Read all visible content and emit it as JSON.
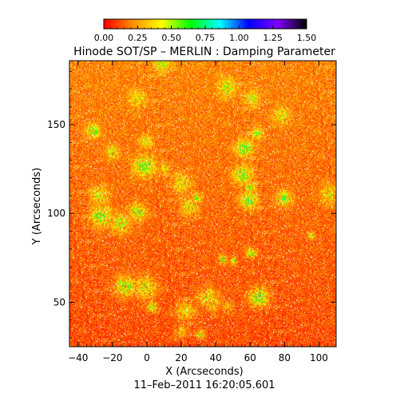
{
  "chart_data": {
    "type": "heatmap",
    "title": "Hinode SOT/SP – MERLIN : Damping Parameter",
    "xlabel": "X (Arcseconds)",
    "ylabel": "Y (Arcseconds)",
    "footer": "11–Feb–2011 16:20:05.601",
    "xlim": [
      -45,
      110
    ],
    "ylim": [
      25,
      186
    ],
    "xticks": [
      -40,
      -20,
      0,
      20,
      40,
      60,
      80,
      100
    ],
    "xtick_labels": [
      "−40",
      "−20",
      "0",
      "20",
      "40",
      "60",
      "80",
      "100"
    ],
    "yticks": [
      50,
      100,
      150
    ],
    "ytick_labels": [
      "50",
      "100",
      "150"
    ],
    "colorbar": {
      "range": [
        0.0,
        1.5
      ],
      "ticks": [
        0.0,
        0.25,
        0.5,
        0.75,
        1.0,
        1.25,
        1.5
      ],
      "tick_labels": [
        "0.00",
        "0.25",
        "0.50",
        "0.75",
        "1.00",
        "1.25",
        "1.50"
      ],
      "colors": [
        "#ff0000",
        "#ff8c00",
        "#ffff00",
        "#00ff00",
        "#00ffff",
        "#0000ff",
        "#8000ff",
        "#000000"
      ]
    },
    "dominant_value_range": [
      0.0,
      0.35
    ],
    "grid": false,
    "legend": "colorbar-top"
  }
}
